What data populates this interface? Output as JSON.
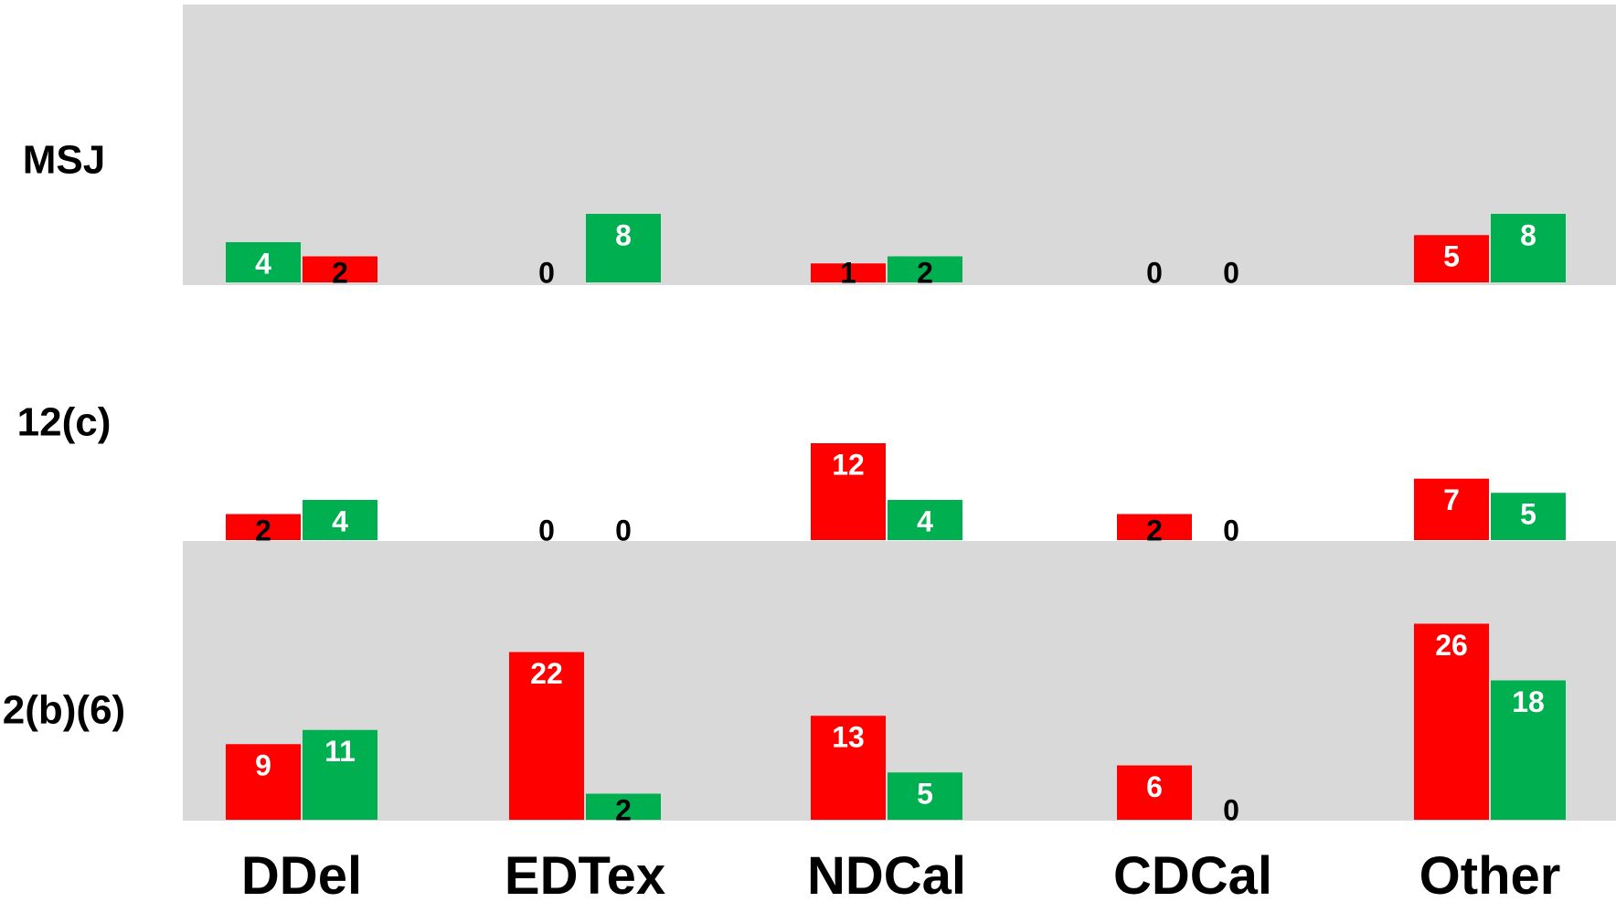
{
  "chart_data": {
    "type": "bar",
    "layout": "small-multiples",
    "categories": [
      "DDel",
      "EDTex",
      "NDCal",
      "CDCal",
      "Other"
    ],
    "series_colors": [
      "#ff0000",
      "#00b050"
    ],
    "panel_background": "#d9d9d9",
    "grid": false,
    "legend": "none",
    "panels": [
      {
        "label": "MSJ",
        "shaded": true,
        "series": [
          {
            "values": [
              2,
              0,
              1,
              0,
              5
            ]
          },
          {
            "values": [
              4,
              8,
              2,
              0,
              8
            ]
          }
        ],
        "series_order": [
          [
            "s2",
            "s1"
          ],
          [
            "s1",
            "s2"
          ],
          [
            "s1",
            "s2"
          ],
          [
            "s1",
            "s2"
          ],
          [
            "s1",
            "s2"
          ]
        ]
      },
      {
        "label": "12(c)",
        "shaded": false,
        "series": [
          {
            "values": [
              2,
              0,
              12,
              2,
              7
            ]
          },
          {
            "values": [
              4,
              0,
              4,
              0,
              5
            ]
          }
        ]
      },
      {
        "label": "2(b)(6)",
        "shaded": true,
        "series": [
          {
            "values": [
              9,
              22,
              13,
              6,
              26
            ]
          },
          {
            "values": [
              11,
              2,
              5,
              0,
              18
            ]
          }
        ]
      }
    ]
  }
}
